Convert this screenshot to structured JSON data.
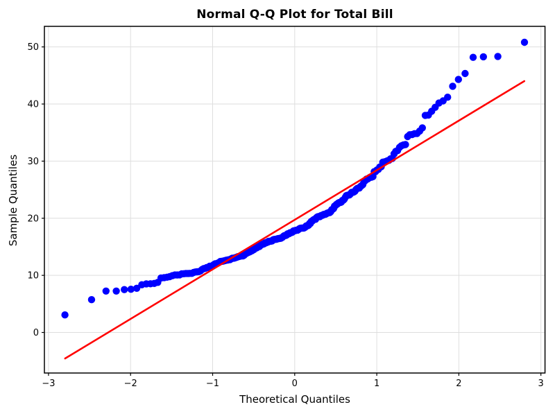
{
  "figure": {
    "title": "Normal Q-Q Plot for Total Bill",
    "xlabel": "Theoretical Quantiles",
    "ylabel": "Sample Quantiles"
  },
  "chart_data": {
    "type": "scatter",
    "subtype": "normal-qq-plot",
    "title": "Normal Q-Q Plot for Total Bill",
    "xlabel": "Theoretical Quantiles",
    "ylabel": "Sample Quantiles",
    "grid": true,
    "legend_position": "none",
    "xlim": [
      -3.05,
      3.05
    ],
    "ylim": [
      -7.1,
      53.6
    ],
    "x_tick_values": [
      -3,
      -2,
      -1,
      0,
      1,
      2,
      3
    ],
    "x_tick_labels": [
      "−3",
      "−2",
      "−1",
      "0",
      "1",
      "2",
      "3"
    ],
    "y_tick_values": [
      0,
      10,
      20,
      30,
      40,
      50
    ],
    "y_tick_labels": [
      "0",
      "10",
      "20",
      "30",
      "40",
      "50"
    ],
    "n_points": 244,
    "plotting_position": "blom:(i-0.375)/(n+0.25)",
    "sample_quantiles_sorted": [
      3.07,
      5.75,
      7.25,
      7.25,
      7.51,
      7.56,
      7.74,
      8.35,
      8.51,
      8.52,
      8.58,
      8.77,
      9.55,
      9.6,
      9.68,
      9.78,
      9.94,
      10.07,
      10.07,
      10.09,
      10.27,
      10.29,
      10.33,
      10.33,
      10.34,
      10.34,
      10.51,
      10.59,
      10.63,
      10.65,
      10.77,
      11.02,
      11.17,
      11.24,
      11.35,
      11.38,
      11.59,
      11.61,
      11.69,
      11.87,
      12.02,
      12.03,
      12.16,
      12.26,
      12.43,
      12.46,
      12.48,
      12.54,
      12.6,
      12.66,
      12.69,
      12.74,
      12.76,
      12.9,
      13.0,
      13.0,
      13.03,
      13.13,
      13.16,
      13.27,
      13.28,
      13.37,
      13.39,
      13.42,
      13.42,
      13.51,
      13.81,
      13.81,
      13.94,
      14.0,
      14.07,
      14.15,
      14.26,
      14.31,
      14.48,
      14.52,
      14.73,
      14.78,
      14.83,
      15.01,
      15.04,
      15.06,
      15.36,
      15.38,
      15.42,
      15.48,
      15.53,
      15.69,
      15.69,
      15.77,
      15.81,
      15.95,
      15.98,
      15.98,
      16.0,
      16.04,
      16.21,
      16.27,
      16.29,
      16.31,
      16.32,
      16.4,
      16.43,
      16.45,
      16.47,
      16.49,
      16.58,
      16.66,
      16.82,
      16.93,
      16.97,
      16.99,
      17.07,
      17.26,
      17.29,
      17.31,
      17.46,
      17.47,
      17.51,
      17.59,
      17.78,
      17.81,
      17.82,
      17.89,
      17.92,
      17.92,
      18.04,
      18.15,
      18.24,
      18.26,
      18.28,
      18.29,
      18.29,
      18.35,
      18.43,
      18.64,
      18.69,
      18.71,
      18.78,
      19.08,
      19.09,
      19.44,
      19.49,
      19.65,
      19.77,
      19.81,
      19.82,
      20.08,
      20.23,
      20.27,
      20.29,
      20.29,
      20.45,
      20.49,
      20.53,
      20.65,
      20.69,
      20.69,
      20.76,
      20.9,
      20.92,
      21.01,
      21.01,
      21.16,
      21.5,
      21.58,
      21.7,
      22.12,
      22.23,
      22.42,
      22.49,
      22.67,
      22.75,
      22.76,
      22.82,
      23.1,
      23.17,
      23.33,
      23.68,
      23.95,
      24.01,
      24.06,
      24.08,
      24.27,
      24.52,
      24.55,
      24.59,
      24.71,
      25.0,
      25.21,
      25.28,
      25.29,
      25.56,
      25.71,
      25.89,
      26.41,
      26.59,
      26.86,
      26.88,
      27.05,
      27.18,
      27.2,
      27.28,
      28.15,
      28.17,
      28.44,
      28.55,
      28.97,
      29.03,
      29.8,
      29.85,
      29.93,
      30.06,
      30.14,
      30.4,
      30.46,
      31.27,
      31.71,
      31.85,
      32.4,
      32.68,
      32.83,
      32.9,
      34.3,
      34.63,
      34.65,
      34.81,
      34.83,
      35.26,
      35.83,
      38.01,
      38.07,
      38.73,
      39.42,
      40.17,
      40.55,
      41.19,
      43.11,
      44.3,
      45.35,
      48.17,
      48.27,
      48.33,
      50.81
    ],
    "reference_line": {
      "slope": 8.68,
      "intercept": 19.73,
      "x_start": -2.7977,
      "x_end": 2.7977
    },
    "marker": {
      "shape": "circle",
      "radius_px": 5.2
    },
    "colors": {
      "points": "#0000ff",
      "line": "#ff0000",
      "grid": "#dedede",
      "spine": "#000000",
      "text": "#000000",
      "background": "#ffffff"
    }
  }
}
